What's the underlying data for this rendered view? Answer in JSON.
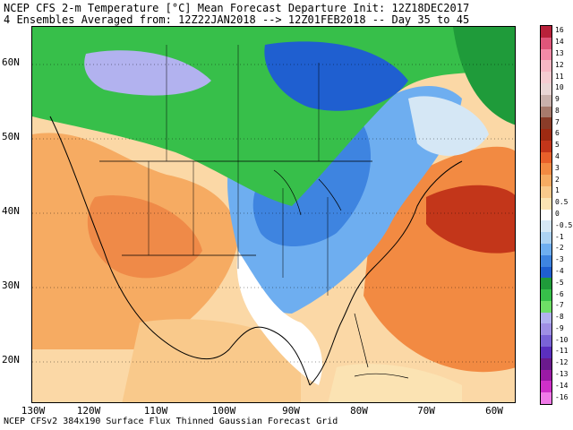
{
  "title": {
    "line1": "NCEP CFS 2-m Temperature [°C] Mean Forecast Departure Init: 12Z18DEC2017",
    "line2": "4 Ensembles Averaged from: 12Z22JAN2018 --> 12Z01FEB2018 -- Day 35 to 45"
  },
  "lat_labels": [
    "60N",
    "50N",
    "40N",
    "30N",
    "20N"
  ],
  "lon_labels": [
    "130W",
    "120W",
    "110W",
    "100W",
    "90W",
    "80W",
    "70W",
    "60W"
  ],
  "footer": "NCEP CFSv2 384x190 Surface Flux Thinned Gaussian Forecast Grid",
  "colorbar": {
    "labels": [
      "16",
      "14",
      "13",
      "12",
      "11",
      "10",
      "9",
      "8",
      "7",
      "6",
      "5",
      "4",
      "3",
      "2",
      "1",
      "0.5",
      "0",
      "-0.5",
      "-1",
      "-2",
      "-3",
      "-4",
      "-5",
      "-6",
      "-7",
      "-8",
      "-9",
      "-10",
      "-11",
      "-12",
      "-13",
      "-14",
      "-16"
    ],
    "colors": [
      "#b8213a",
      "#e0567a",
      "#f48aa7",
      "#f7b7c4",
      "#f4ccd1",
      "#e9d6d5",
      "#c9b0ab",
      "#a77a6c",
      "#8a3c28",
      "#9e2a12",
      "#c3361a",
      "#e8602a",
      "#f28a42",
      "#f6ab62",
      "#f9c98b",
      "#fbe3b3",
      "#ffffff",
      "#d5e7f5",
      "#acd2f2",
      "#6eaef0",
      "#3e84e0",
      "#1f5fd0",
      "#1f9b3a",
      "#37bf4a",
      "#6ede66",
      "#b2b2ef",
      "#9f8fe4",
      "#7a63d6",
      "#5b2fbf",
      "#6b1a8d",
      "#9b1aa5",
      "#cf30c9",
      "#f07ae8"
    ]
  }
}
